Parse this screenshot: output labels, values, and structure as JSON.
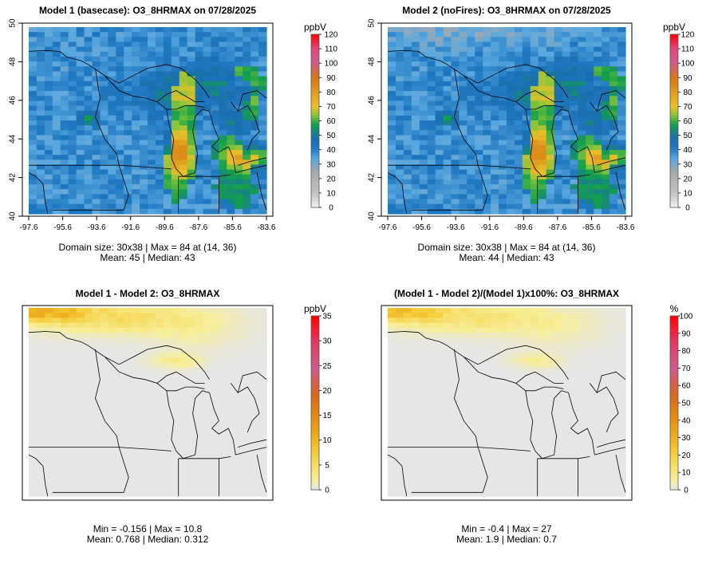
{
  "chart_data": [
    {
      "type": "heatmap",
      "title": "Model 1 (basecase): O3_8HRMAX on 07/28/2025",
      "variable": "O3_8HRMAX",
      "xticks": [
        "-97.6",
        "-95.6",
        "-93.6",
        "-91.6",
        "-89.6",
        "-87.6",
        "-85.6",
        "-83.6"
      ],
      "yticks": [
        "40",
        "42",
        "44",
        "46",
        "48",
        "50"
      ],
      "xlim": [
        -97.6,
        -83.6
      ],
      "ylim": [
        40,
        50
      ],
      "colorbar": {
        "unit": "ppbV",
        "ticks": [
          "0",
          "10",
          "20",
          "30",
          "40",
          "50",
          "60",
          "70",
          "80",
          "90",
          "100",
          "110",
          "120"
        ],
        "range": [
          0,
          120
        ],
        "palette": "ozone"
      },
      "grid": {
        "rows": 38,
        "cols": 30
      },
      "summary": [
        "Domain size: 30x38 | Max = 84 at (14, 36)",
        "Mean: 45 |  Median: 43"
      ],
      "stats": {
        "max": 84,
        "max_cell": [
          14,
          36
        ],
        "mean": 45,
        "median": 43
      },
      "field_kind": "ozone"
    },
    {
      "type": "heatmap",
      "title": "Model 2 (noFires): O3_8HRMAX on 07/28/2025",
      "variable": "O3_8HRMAX",
      "xticks": [
        "-97.6",
        "-95.6",
        "-93.6",
        "-91.6",
        "-89.6",
        "-87.6",
        "-85.6",
        "-83.6"
      ],
      "yticks": [
        "40",
        "42",
        "44",
        "46",
        "48",
        "50"
      ],
      "xlim": [
        -97.6,
        -83.6
      ],
      "ylim": [
        40,
        50
      ],
      "colorbar": {
        "unit": "ppbV",
        "ticks": [
          "0",
          "10",
          "20",
          "30",
          "40",
          "50",
          "60",
          "70",
          "80",
          "90",
          "100",
          "110",
          "120"
        ],
        "range": [
          0,
          120
        ],
        "palette": "ozone"
      },
      "grid": {
        "rows": 38,
        "cols": 30
      },
      "summary": [
        "Domain size: 30x38 | Max = 84 at (14, 36)",
        "Mean: 44 |  Median: 43"
      ],
      "stats": {
        "max": 84,
        "max_cell": [
          14,
          36
        ],
        "mean": 44,
        "median": 43
      },
      "field_kind": "ozone_nofire"
    },
    {
      "type": "heatmap",
      "title": "Model 1 - Model 2: O3_8HRMAX",
      "variable": "O3_8HRMAX",
      "xticks": [],
      "yticks": [],
      "colorbar": {
        "unit": "ppbV",
        "ticks": [
          "0",
          "5",
          "10",
          "15",
          "20",
          "25",
          "30",
          "35"
        ],
        "range": [
          0,
          35
        ],
        "palette": "diff"
      },
      "grid": {
        "rows": 38,
        "cols": 30
      },
      "summary": [
        "Min = -0.156 | Max = 10.8",
        "Mean: 0.768 |  Median: 0.312"
      ],
      "stats": {
        "min": -0.156,
        "max": 10.8,
        "mean": 0.768,
        "median": 0.312
      },
      "field_kind": "diff"
    },
    {
      "type": "heatmap",
      "title": "(Model 1 - Model 2)/(Model 1)x100%: O3_8HRMAX",
      "variable": "O3_8HRMAX",
      "xticks": [],
      "yticks": [],
      "colorbar": {
        "unit": "%",
        "ticks": [
          "0",
          "10",
          "20",
          "30",
          "40",
          "50",
          "60",
          "70",
          "80",
          "90",
          "100"
        ],
        "range": [
          0,
          100
        ],
        "palette": "diff"
      },
      "grid": {
        "rows": 38,
        "cols": 30
      },
      "summary": [
        "Min = -0.4 | Max = 27",
        "Mean: 1.9 |  Median: 0.7"
      ],
      "stats": {
        "min": -0.4,
        "max": 27,
        "mean": 1.9,
        "median": 0.7
      },
      "field_kind": "pct"
    }
  ],
  "colors": {
    "ozone_palette": [
      "#f0f0f0",
      "#c4c4c4",
      "#a9a9a9",
      "#5aa8e0",
      "#1f78c0",
      "#1a6fb0",
      "#13a04a",
      "#86c43a",
      "#e8c02a",
      "#e2a020",
      "#d97a10",
      "#cc5a8c",
      "#e0457a",
      "#ff0000"
    ],
    "diff_palette": [
      "#e6e6e6",
      "#f7ef9a",
      "#f5d040",
      "#eeb020",
      "#e28a10",
      "#d8661e",
      "#cc5a8c",
      "#e03a60",
      "#ff0000"
    ],
    "map_outline": "#000000",
    "frame": "#000000"
  }
}
